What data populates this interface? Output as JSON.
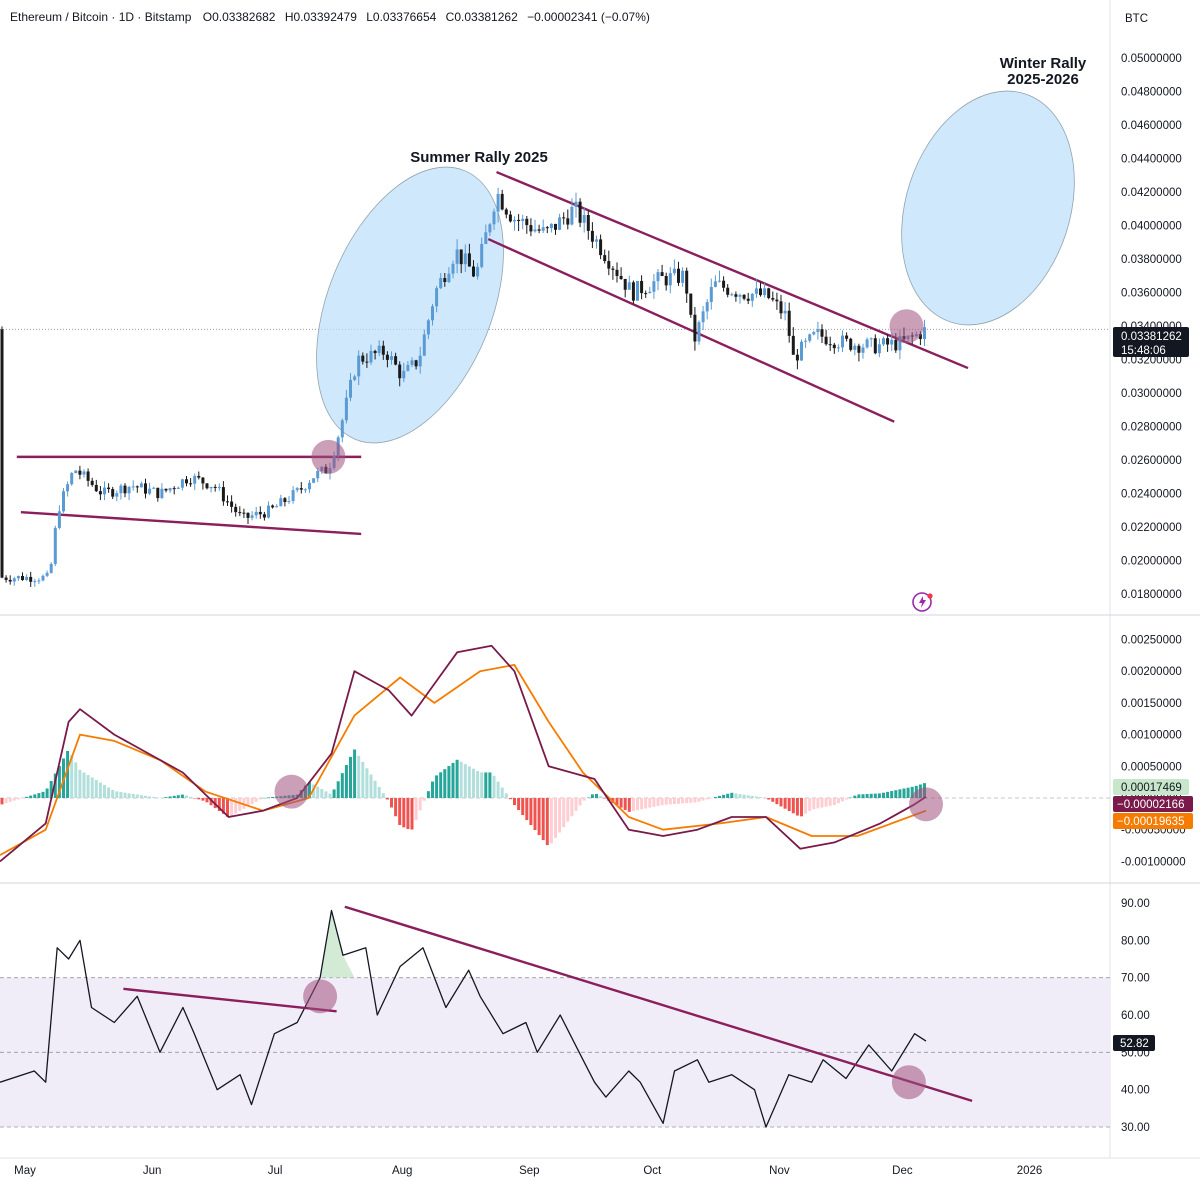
{
  "header": {
    "symbol": "Ethereum / Bitcoin · 1D · Bitstamp",
    "open": "O0.03382682",
    "high": "H0.03392479",
    "low": "L0.03376654",
    "close": "C0.03381262",
    "change": "−0.00002341 (−0.07%)",
    "currency": "BTC"
  },
  "annotations": {
    "summer": "Summer Rally 2025",
    "winter1": "Winter Rally",
    "winter2": "2025-2026"
  },
  "price_tags": {
    "last": "0.03381262",
    "countdown": "15:48:06"
  },
  "macd_tags": {
    "hist": "0.00017469",
    "macd": "−0.00002166",
    "signal": "−0.00019635"
  },
  "rsi_tag": "52.82",
  "colors": {
    "up": "#5b9bd5",
    "down": "#1a1a1a",
    "trend": "#8b1e5c",
    "macd": "#7a1a4a",
    "signal": "#f57c00",
    "hist_up_strong": "#26a69a",
    "hist_up_weak": "#b2dfdb",
    "hist_down_strong": "#ef5350",
    "hist_down_weak": "#ffcdd2",
    "ellipse": "#bbdefb",
    "circle": "#a0507c",
    "rsi_band": "#f1edf8"
  },
  "chart_data": [
    {
      "type": "candlestick",
      "title": "Ethereum / Bitcoin · 1D · Bitstamp",
      "ylabel": "BTC",
      "ylim": [
        0.017,
        0.0515
      ],
      "yticks": [
        "0.01800000",
        "0.02000000",
        "0.02200000",
        "0.02400000",
        "0.02600000",
        "0.02800000",
        "0.03000000",
        "0.03200000",
        "0.03400000",
        "0.03600000",
        "0.03800000",
        "0.04000000",
        "0.04200000",
        "0.04400000",
        "0.04600000",
        "0.04800000",
        "0.05000000"
      ],
      "xticks": [
        "May",
        "Jun",
        "Jul",
        "Aug",
        "Sep",
        "Oct",
        "Nov",
        "Dec",
        "2026"
      ],
      "close_path": [
        [
          "2025-04-25",
          0.019
        ],
        [
          "2025-05-07",
          0.019
        ],
        [
          "2025-05-09",
          0.023
        ],
        [
          "2025-05-13",
          0.0255
        ],
        [
          "2025-05-20",
          0.024
        ],
        [
          "2025-05-27",
          0.0245
        ],
        [
          "2025-06-03",
          0.024
        ],
        [
          "2025-06-10",
          0.025
        ],
        [
          "2025-06-16",
          0.0245
        ],
        [
          "2025-06-23",
          0.0225
        ],
        [
          "2025-06-30",
          0.023
        ],
        [
          "2025-07-07",
          0.0242
        ],
        [
          "2025-07-10",
          0.025
        ],
        [
          "2025-07-14",
          0.0255
        ],
        [
          "2025-07-17",
          0.028
        ],
        [
          "2025-07-21",
          0.032
        ],
        [
          "2025-07-28",
          0.0325
        ],
        [
          "2025-08-01",
          0.031
        ],
        [
          "2025-08-05",
          0.032
        ],
        [
          "2025-08-09",
          0.036
        ],
        [
          "2025-08-14",
          0.0385
        ],
        [
          "2025-08-19",
          0.037
        ],
        [
          "2025-08-24",
          0.042
        ],
        [
          "2025-08-28",
          0.0405
        ],
        [
          "2025-09-05",
          0.0395
        ],
        [
          "2025-09-12",
          0.041
        ],
        [
          "2025-09-19",
          0.0385
        ],
        [
          "2025-09-26",
          0.036
        ],
        [
          "2025-10-03",
          0.0368
        ],
        [
          "2025-10-09",
          0.037
        ],
        [
          "2025-10-11",
          0.033
        ],
        [
          "2025-10-16",
          0.0365
        ],
        [
          "2025-10-23",
          0.036
        ],
        [
          "2025-10-29",
          0.0358
        ],
        [
          "2025-11-03",
          0.0345
        ],
        [
          "2025-11-04",
          0.032
        ],
        [
          "2025-11-10",
          0.0335
        ],
        [
          "2025-11-17",
          0.033
        ],
        [
          "2025-11-24",
          0.0328
        ],
        [
          "2025-12-01",
          0.033
        ],
        [
          "2025-12-07",
          0.03381262
        ]
      ],
      "trendlines": [
        {
          "from": [
            "2025-04-29",
            0.0262
          ],
          "to": [
            "2025-07-22",
            0.0262
          ]
        },
        {
          "from": [
            "2025-04-30",
            0.0229
          ],
          "to": [
            "2025-07-22",
            0.0216
          ]
        },
        {
          "from": [
            "2025-08-24",
            0.0432
          ],
          "to": [
            "2025-12-17",
            0.0315
          ]
        },
        {
          "from": [
            "2025-08-22",
            0.0392
          ],
          "to": [
            "2025-11-29",
            0.0283
          ]
        }
      ],
      "annotations": [
        "Summer Rally 2025",
        "Winter Rally 2025-2026"
      ],
      "last_price": 0.03381262
    },
    {
      "type": "line",
      "name": "MACD",
      "ylim": [
        -0.0012,
        0.0028
      ],
      "yticks": [
        "0.00250000",
        "0.00200000",
        "0.00150000",
        "0.00100000",
        "0.00050000",
        "0.00000000",
        "-0.00050000",
        "-0.00100000"
      ],
      "series": [
        {
          "name": "MACD",
          "values": [
            [
              0.0,
              -0.001
            ],
            [
              0.04,
              -0.0004
            ],
            [
              0.06,
              0.0012
            ],
            [
              0.07,
              0.0014
            ],
            [
              0.1,
              0.001
            ],
            [
              0.13,
              0.0007
            ],
            [
              0.16,
              0.0004
            ],
            [
              0.2,
              -0.0003
            ],
            [
              0.23,
              -0.0002
            ],
            [
              0.26,
              0.0
            ],
            [
              0.29,
              0.0007
            ],
            [
              0.31,
              0.002
            ],
            [
              0.34,
              0.0017
            ],
            [
              0.36,
              0.0013
            ],
            [
              0.38,
              0.0018
            ],
            [
              0.4,
              0.0023
            ],
            [
              0.43,
              0.0024
            ],
            [
              0.45,
              0.002
            ],
            [
              0.48,
              0.0005
            ],
            [
              0.52,
              0.0003
            ],
            [
              0.55,
              -0.0005
            ],
            [
              0.58,
              -0.0006
            ],
            [
              0.61,
              -0.0005
            ],
            [
              0.64,
              -0.0003
            ],
            [
              0.67,
              -0.0003
            ],
            [
              0.7,
              -0.0008
            ],
            [
              0.73,
              -0.0007
            ],
            [
              0.77,
              -0.0004
            ],
            [
              0.8,
              -0.0001
            ],
            [
              0.81,
              2e-05
            ]
          ]
        },
        {
          "name": "Signal",
          "values": [
            [
              0.0,
              -0.0009
            ],
            [
              0.04,
              -0.0005
            ],
            [
              0.07,
              0.001
            ],
            [
              0.1,
              0.0009
            ],
            [
              0.14,
              0.0006
            ],
            [
              0.18,
              0.0001
            ],
            [
              0.23,
              -0.0002
            ],
            [
              0.27,
              0.0
            ],
            [
              0.31,
              0.0013
            ],
            [
              0.35,
              0.0019
            ],
            [
              0.38,
              0.0015
            ],
            [
              0.42,
              0.002
            ],
            [
              0.45,
              0.0021
            ],
            [
              0.48,
              0.0012
            ],
            [
              0.51,
              0.0004
            ],
            [
              0.55,
              -0.0003
            ],
            [
              0.58,
              -0.0005
            ],
            [
              0.63,
              -0.0004
            ],
            [
              0.67,
              -0.0003
            ],
            [
              0.71,
              -0.0006
            ],
            [
              0.75,
              -0.0006
            ],
            [
              0.78,
              -0.0004
            ],
            [
              0.81,
              -0.0002
            ]
          ]
        }
      ],
      "last": {
        "histogram": 0.00017469,
        "macd": -2.166e-05,
        "signal": -0.00019635
      }
    },
    {
      "type": "line",
      "name": "RSI",
      "ylim": [
        28,
        93
      ],
      "yticks": [
        "90.00",
        "80.00",
        "70.00",
        "60.00",
        "50.00",
        "40.00",
        "30.00"
      ],
      "bands": [
        30,
        50,
        70
      ],
      "values": [
        [
          0.0,
          42
        ],
        [
          0.03,
          45
        ],
        [
          0.04,
          42
        ],
        [
          0.05,
          78
        ],
        [
          0.06,
          75
        ],
        [
          0.07,
          80
        ],
        [
          0.08,
          62
        ],
        [
          0.1,
          58
        ],
        [
          0.12,
          65
        ],
        [
          0.14,
          50
        ],
        [
          0.16,
          62
        ],
        [
          0.17,
          55
        ],
        [
          0.19,
          40
        ],
        [
          0.21,
          44
        ],
        [
          0.22,
          36
        ],
        [
          0.24,
          55
        ],
        [
          0.26,
          58
        ],
        [
          0.28,
          70
        ],
        [
          0.29,
          88
        ],
        [
          0.3,
          76
        ],
        [
          0.32,
          78
        ],
        [
          0.33,
          60
        ],
        [
          0.35,
          73
        ],
        [
          0.37,
          78
        ],
        [
          0.39,
          62
        ],
        [
          0.41,
          72
        ],
        [
          0.42,
          65
        ],
        [
          0.44,
          55
        ],
        [
          0.46,
          58
        ],
        [
          0.47,
          50
        ],
        [
          0.49,
          60
        ],
        [
          0.51,
          48
        ],
        [
          0.52,
          42
        ],
        [
          0.53,
          38
        ],
        [
          0.55,
          45
        ],
        [
          0.56,
          42
        ],
        [
          0.58,
          31
        ],
        [
          0.59,
          45
        ],
        [
          0.61,
          48
        ],
        [
          0.62,
          42
        ],
        [
          0.64,
          44
        ],
        [
          0.66,
          40
        ],
        [
          0.67,
          30
        ],
        [
          0.69,
          44
        ],
        [
          0.71,
          42
        ],
        [
          0.72,
          48
        ],
        [
          0.74,
          43
        ],
        [
          0.76,
          52
        ],
        [
          0.78,
          45
        ],
        [
          0.8,
          55
        ],
        [
          0.81,
          53
        ]
      ],
      "last": 52.82,
      "trendlines": [
        {
          "from": [
            "2025-05-25",
            67
          ],
          "to": [
            "2025-07-16",
            61
          ]
        },
        {
          "from": [
            "2025-07-18",
            89
          ],
          "to": [
            "2025-12-18",
            37
          ]
        }
      ]
    }
  ]
}
